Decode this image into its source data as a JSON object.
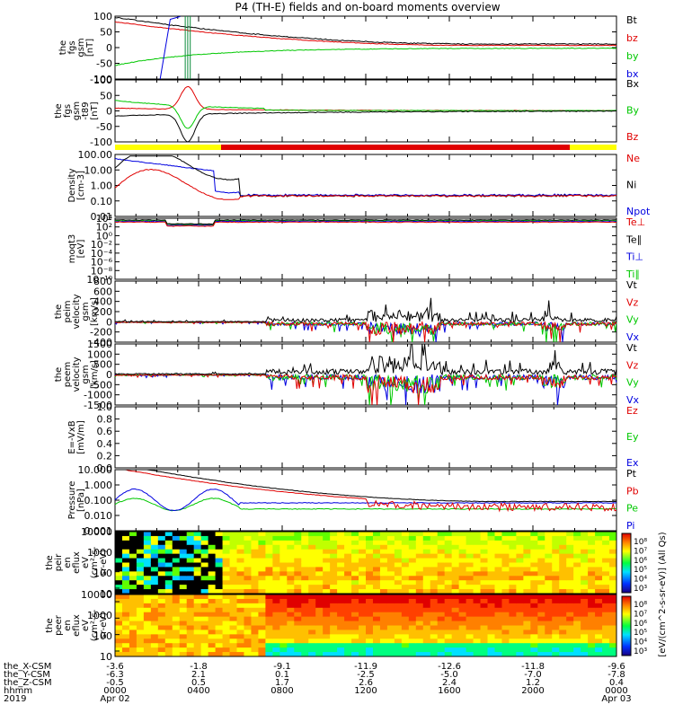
{
  "chart_data": {
    "type": "line",
    "title": "P4 (TH-E) fields and on-board moments overview",
    "x": [
      "0000",
      "0400",
      "0800",
      "1200",
      "1600",
      "2000",
      "0000"
    ],
    "x_axis": {
      "rows": [
        {
          "label": "the_X-CSM",
          "values": [
            "-3.6",
            "-1.8",
            "-9.1",
            "-11.9",
            "-12.6",
            "-11.8",
            "-9.6"
          ]
        },
        {
          "label": "the_Y-CSM",
          "values": [
            "-6.3",
            "2.1",
            "0.1",
            "-2.5",
            "-5.0",
            "-7.0",
            "-7.8"
          ]
        },
        {
          "label": "the_Z-CSM",
          "values": [
            "-0.5",
            "0.5",
            "1.7",
            "2.6",
            "2.4",
            "1.2",
            "0.4"
          ]
        },
        {
          "label": "hhmm",
          "values": [
            "0000",
            "0400",
            "0800",
            "1200",
            "1600",
            "2000",
            "0000"
          ]
        }
      ],
      "year": "2019",
      "dates": [
        "Apr 02",
        "Apr 03"
      ]
    },
    "panels": [
      {
        "ylabel": [
          "the",
          "fgs",
          "gsm",
          "[nT]"
        ],
        "ticks": [
          "100",
          "50",
          "0",
          "-50",
          "-100"
        ],
        "ylim": [
          -100,
          100
        ],
        "legend": [
          {
            "name": "Bt",
            "color": "#000000"
          },
          {
            "name": "bz",
            "color": "#e00000"
          },
          {
            "name": "by",
            "color": "#00c800"
          },
          {
            "name": "bx",
            "color": "#0000e0"
          }
        ]
      },
      {
        "ylabel": [
          "the",
          "fgs",
          "gsm",
          "-t89",
          "[nT]"
        ],
        "ticks": [
          "100",
          "50",
          "0",
          "-50",
          "-100"
        ],
        "ylim": [
          -120,
          120
        ],
        "legend": [
          {
            "name": "Bx",
            "color": "#000000"
          },
          {
            "name": "By",
            "color": "#00c800"
          },
          {
            "name": "Bz",
            "color": "#e00000"
          }
        ]
      },
      {
        "ylabel": [
          "Density",
          "[cm-3]"
        ],
        "ticks": [
          "100.00",
          "10.00",
          "1.00",
          "0.10",
          "0.01"
        ],
        "ylim": [
          0.01,
          100
        ],
        "log": true,
        "legend": [
          {
            "name": "Ne",
            "color": "#e00000"
          },
          {
            "name": "Ni",
            "color": "#000000"
          },
          {
            "name": "Npot",
            "color": "#0000e0"
          }
        ]
      },
      {
        "ylabel": [
          "moqt3",
          "[eV]"
        ],
        "ticks": [
          "10⁴",
          "10²",
          "10⁰",
          "10⁻²",
          "10⁻⁴",
          "10⁻⁶",
          "10⁻⁸",
          "10⁻¹⁰"
        ],
        "ylim": [
          "1e-10",
          "1e4"
        ],
        "log": true,
        "legend": [
          {
            "name": "Te⊥",
            "color": "#e00000"
          },
          {
            "name": "Te∥",
            "color": "#000000"
          },
          {
            "name": "Ti⊥",
            "color": "#0000e0"
          },
          {
            "name": "Ti∥",
            "color": "#00c800"
          }
        ]
      },
      {
        "ylabel": [
          "the",
          "peim",
          "velocity",
          "gsm",
          "[km/s]"
        ],
        "ticks": [
          "800",
          "600",
          "400",
          "200",
          "0",
          "-200",
          "-400"
        ],
        "ylim": [
          -400,
          800
        ],
        "legend": [
          {
            "name": "Vt",
            "color": "#000000"
          },
          {
            "name": "Vz",
            "color": "#e00000"
          },
          {
            "name": "Vy",
            "color": "#00c800"
          },
          {
            "name": "Vx",
            "color": "#0000e0"
          }
        ]
      },
      {
        "ylabel": [
          "the",
          "peem",
          "velocity",
          "gsm",
          "[km/s]"
        ],
        "ticks": [
          "1500",
          "1000",
          "500",
          "0",
          "-500",
          "-1000",
          "-1500"
        ],
        "ylim": [
          -1500,
          1500
        ],
        "legend": [
          {
            "name": "Vt",
            "color": "#000000"
          },
          {
            "name": "Vz",
            "color": "#e00000"
          },
          {
            "name": "Vy",
            "color": "#00c800"
          },
          {
            "name": "Vx",
            "color": "#0000e0"
          }
        ]
      },
      {
        "ylabel": [
          "E=-VxB",
          "[mV/m]"
        ],
        "ticks": [
          "1.0",
          "0.8",
          "0.6",
          "0.4",
          "0.2",
          "0.0"
        ],
        "ylim": [
          0,
          1
        ],
        "legend": [
          {
            "name": "Ez",
            "color": "#e00000"
          },
          {
            "name": "Ey",
            "color": "#00c800"
          },
          {
            "name": "Ex",
            "color": "#0000e0"
          }
        ]
      },
      {
        "ylabel": [
          "Pressure",
          "[nPa]"
        ],
        "ticks": [
          "10.000",
          "1.000",
          "0.100",
          "0.010",
          "0.001"
        ],
        "ylim": [
          0.001,
          10
        ],
        "log": true,
        "legend": [
          {
            "name": "Pt",
            "color": "#000000"
          },
          {
            "name": "Pb",
            "color": "#e00000"
          },
          {
            "name": "Pe",
            "color": "#00c800"
          },
          {
            "name": "Pi",
            "color": "#0000e0"
          }
        ]
      },
      {
        "ylabel": [
          "the",
          "peir",
          "en",
          "eflux",
          "eV",
          "(cm²-s-",
          "sr-eV)"
        ],
        "ticks": [
          "10000",
          "1000",
          "100",
          "10"
        ],
        "ylim": [
          10,
          20000
        ],
        "log": true,
        "spectrogram": true
      },
      {
        "ylabel": [
          "the",
          "peer",
          "en",
          "eflux",
          "eV",
          "(cm²-s-",
          "sr-eV)"
        ],
        "ticks": [
          "10000",
          "1000",
          "100",
          "10"
        ],
        "ylim": [
          10,
          20000
        ],
        "log": true,
        "spectrogram": true
      }
    ],
    "colorbars": [
      {
        "ticks": [
          "10⁸",
          "10⁷",
          "10⁶",
          "10⁵",
          "10⁴",
          "10³"
        ]
      },
      {
        "ticks": [
          "10⁸",
          "10⁷",
          "10⁶",
          "10⁵",
          "10⁴",
          "10³"
        ]
      }
    ],
    "colorbar_label": "[eV/(cm^2-s-sr-eV)] (All Qs)",
    "mode_bar": {
      "colors": [
        "#ffff00",
        "#e00000",
        "#ffff00"
      ]
    }
  }
}
